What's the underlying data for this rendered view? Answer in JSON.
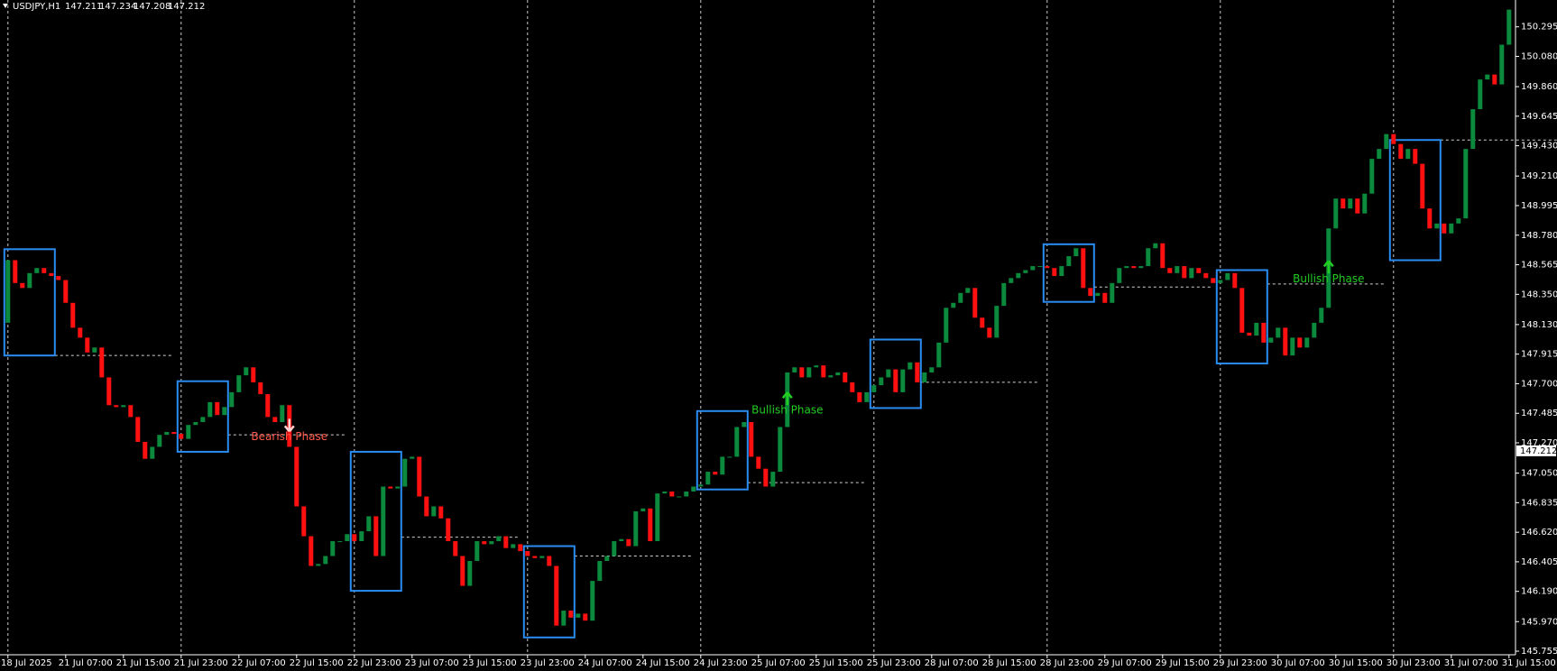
{
  "chart_data": {
    "type": "candlestick",
    "title": "USDJPY,H1",
    "last_bar": {
      "open": 147.211,
      "high": 147.234,
      "low": 147.208,
      "close": 147.212
    },
    "up_color": "#0b8a3e",
    "down_color": "#ff1010",
    "box_color": "#2a8cf0",
    "ylim": [
      145.729,
      150.49
    ],
    "yticks": [
      150.295,
      {
        "value": 150.08,
        "label": "150.080"
      },
      {
        "value": 149.86,
        "label": "149.860"
      },
      149.645,
      {
        "value": 149.43,
        "label": "149.430"
      },
      {
        "value": 149.21,
        "label": "149.210"
      },
      148.995,
      {
        "value": 148.78,
        "label": "148.780"
      },
      148.565,
      {
        "value": 148.35,
        "label": "148.350"
      },
      {
        "value": 148.13,
        "label": "148.130"
      },
      147.915,
      {
        "value": 147.7,
        "label": "147.700"
      },
      147.485,
      {
        "value": 147.27,
        "label": "147.270"
      },
      {
        "value": 147.05,
        "label": "147.050"
      },
      146.835,
      {
        "value": 146.62,
        "label": "146.620"
      },
      146.405,
      {
        "value": 146.19,
        "label": "146.190"
      },
      {
        "value": 145.97,
        "label": "145.970"
      },
      145.755
    ],
    "categories": [
      "18 Jul 2025",
      null,
      null,
      null,
      null,
      null,
      null,
      null,
      "21 Jul 07:00",
      null,
      null,
      null,
      null,
      null,
      null,
      null,
      "21 Jul 15:00",
      null,
      null,
      null,
      null,
      null,
      null,
      null,
      "21 Jul 23:00",
      null,
      null,
      null,
      null,
      null,
      null,
      null,
      "22 Jul 07:00",
      null,
      null,
      null,
      null,
      null,
      null,
      null,
      "22 Jul 15:00",
      null,
      null,
      null,
      null,
      null,
      null,
      null,
      "22 Jul 23:00",
      null,
      null,
      null,
      null,
      null,
      null,
      null,
      "23 Jul 07:00",
      null,
      null,
      null,
      null,
      null,
      null,
      null,
      "23 Jul 15:00",
      null,
      null,
      null,
      null,
      null,
      null,
      null,
      "23 Jul 23:00",
      null,
      null,
      null,
      null,
      null,
      null,
      null,
      "24 Jul 07:00",
      null,
      null,
      null,
      null,
      null,
      null,
      null,
      "24 Jul 15:00",
      null,
      null,
      null,
      null,
      null,
      null,
      null,
      "24 Jul 23:00",
      null,
      null,
      null,
      null,
      null,
      null,
      null,
      "25 Jul 07:00",
      null,
      null,
      null,
      null,
      null,
      null,
      null,
      "25 Jul 15:00",
      null,
      null,
      null,
      null,
      null,
      null,
      null,
      "25 Jul 23:00",
      null,
      null,
      null,
      null,
      null,
      null,
      null,
      "28 Jul 07:00",
      null,
      null,
      null,
      null,
      null,
      null,
      null,
      "28 Jul 15:00",
      null,
      null,
      null,
      null,
      null,
      null,
      null,
      "28 Jul 23:00",
      null,
      null,
      null,
      null,
      null,
      null,
      null,
      "29 Jul 07:00",
      null,
      null,
      null,
      null,
      null,
      null,
      null,
      "29 Jul 15:00",
      null,
      null,
      null,
      null,
      null,
      null,
      null,
      "29 Jul 23:00",
      null,
      null,
      null,
      null,
      null,
      null,
      null,
      "30 Jul 07:00",
      null,
      null,
      null,
      null,
      null,
      null,
      null,
      "30 Jul 15:00",
      null,
      null,
      null,
      null,
      null,
      null,
      null,
      "30 Jul 23:00",
      null,
      null,
      null,
      null,
      null,
      null,
      null,
      "31 Jul 07:00",
      null,
      null,
      null,
      null,
      null,
      null,
      null,
      "31 Jul 15:00"
    ],
    "open": [
      148.143,
      148.598,
      148.432,
      148.396,
      148.504,
      148.541,
      148.504,
      148.483,
      148.454,
      148.288,
      148.107,
      148.035,
      147.927,
      147.963,
      147.746,
      147.544,
      147.53,
      147.544,
      147.458,
      147.277,
      147.154,
      147.241,
      147.328,
      147.349,
      147.335,
      147.299,
      147.4,
      147.421,
      147.458,
      147.566,
      147.472,
      147.53,
      147.638,
      147.761,
      147.819,
      147.71,
      147.624,
      147.458,
      147.421,
      147.544,
      147.241,
      146.808,
      146.591,
      146.375,
      146.389,
      146.447,
      146.555,
      146.555,
      146.606,
      146.555,
      146.627,
      146.736,
      146.447,
      146.952,
      146.938,
      146.952,
      147.154,
      147.169,
      146.88,
      146.736,
      146.808,
      146.721,
      146.555,
      146.447,
      146.23,
      146.411,
      146.555,
      146.533,
      146.555,
      146.591,
      146.505,
      146.533,
      146.483,
      146.447,
      146.432,
      146.447,
      146.375,
      145.941,
      146.05,
      145.999,
      146.028,
      145.977,
      146.266,
      146.411,
      146.447,
      146.555,
      146.57,
      146.519,
      146.772,
      146.793,
      146.555,
      146.902,
      146.916,
      146.88,
      146.88,
      146.916,
      146.952,
      146.967,
      147.06,
      147.039,
      147.169,
      147.169,
      147.385,
      147.421,
      147.169,
      147.082,
      146.952,
      147.06,
      147.385,
      147.782,
      147.819,
      147.746,
      147.819,
      147.833,
      147.746,
      147.761,
      147.782,
      147.71,
      147.638,
      147.566,
      147.638,
      147.689,
      147.746,
      147.804,
      147.638,
      147.804,
      147.855,
      147.71,
      147.782,
      147.819,
      147.999,
      148.252,
      148.288,
      148.36,
      148.396,
      148.18,
      148.107,
      148.035,
      148.266,
      148.432,
      148.468,
      148.504,
      148.526,
      148.555,
      148.555,
      148.541,
      148.483,
      148.555,
      148.627,
      148.685,
      148.396,
      148.338,
      148.36,
      148.288,
      148.432,
      148.541,
      148.555,
      148.541,
      148.555,
      148.685,
      148.721,
      148.541,
      148.504,
      148.555,
      148.468,
      148.541,
      148.504,
      148.468,
      148.432,
      148.454,
      148.504,
      148.396,
      148.071,
      148.05,
      148.143,
      147.999,
      148.035,
      148.107,
      147.905,
      148.035,
      147.963,
      148.035,
      148.143,
      148.252,
      148.829,
      149.046,
      148.974,
      149.046,
      148.938,
      149.082,
      149.335,
      149.407,
      149.515,
      149.443,
      149.335,
      149.407,
      149.299,
      148.974,
      148.829,
      148.865,
      148.793,
      148.865,
      148.902,
      149.407,
      149.696,
      149.912,
      149.948,
      149.876,
      150.165
    ],
    "close": [
      148.598,
      148.432,
      148.396,
      148.504,
      148.541,
      148.504,
      148.483,
      148.454,
      148.288,
      148.107,
      148.035,
      147.927,
      147.963,
      147.746,
      147.544,
      147.53,
      147.544,
      147.458,
      147.277,
      147.154,
      147.241,
      147.328,
      147.349,
      147.335,
      147.299,
      147.4,
      147.421,
      147.458,
      147.566,
      147.472,
      147.53,
      147.638,
      147.761,
      147.819,
      147.71,
      147.624,
      147.458,
      147.421,
      147.544,
      147.241,
      146.808,
      146.591,
      146.375,
      146.389,
      146.447,
      146.555,
      146.555,
      146.606,
      146.555,
      146.627,
      146.736,
      146.447,
      146.952,
      146.938,
      146.952,
      147.154,
      147.169,
      146.88,
      146.736,
      146.808,
      146.721,
      146.555,
      146.447,
      146.23,
      146.411,
      146.555,
      146.533,
      146.555,
      146.591,
      146.505,
      146.533,
      146.483,
      146.447,
      146.432,
      146.447,
      146.375,
      145.941,
      146.05,
      145.999,
      146.028,
      145.977,
      146.266,
      146.411,
      146.447,
      146.555,
      146.57,
      146.519,
      146.772,
      146.793,
      146.555,
      146.902,
      146.916,
      146.88,
      146.88,
      146.916,
      146.952,
      146.967,
      147.06,
      147.039,
      147.169,
      147.169,
      147.385,
      147.421,
      147.169,
      147.082,
      146.952,
      147.06,
      147.385,
      147.782,
      147.819,
      147.746,
      147.819,
      147.833,
      147.746,
      147.761,
      147.782,
      147.71,
      147.638,
      147.566,
      147.638,
      147.689,
      147.746,
      147.804,
      147.638,
      147.804,
      147.855,
      147.71,
      147.782,
      147.819,
      147.999,
      148.252,
      148.288,
      148.36,
      148.396,
      148.18,
      148.107,
      148.035,
      148.266,
      148.432,
      148.468,
      148.504,
      148.526,
      148.555,
      148.555,
      148.541,
      148.483,
      148.555,
      148.627,
      148.685,
      148.396,
      148.338,
      148.36,
      148.288,
      148.432,
      148.541,
      148.555,
      148.541,
      148.555,
      148.685,
      148.721,
      148.541,
      148.504,
      148.555,
      148.468,
      148.541,
      148.504,
      148.468,
      148.432,
      148.454,
      148.504,
      148.396,
      148.071,
      148.05,
      148.143,
      147.999,
      148.035,
      148.107,
      147.905,
      148.035,
      147.963,
      148.035,
      148.143,
      148.252,
      148.829,
      149.046,
      148.974,
      149.046,
      148.938,
      149.082,
      149.335,
      149.407,
      149.515,
      149.443,
      149.335,
      149.407,
      149.299,
      148.974,
      148.829,
      148.865,
      148.793,
      148.865,
      148.902,
      149.407,
      149.696,
      149.912,
      149.948,
      149.876,
      150.165,
      150.42
    ],
    "boxes": [
      {
        "from": 0,
        "to": 6,
        "high": 148.678,
        "low": 147.905,
        "level": 147.905
      },
      {
        "from": 24,
        "to": 30,
        "high": 147.718,
        "low": 147.205,
        "level": 147.328
      },
      {
        "from": 48,
        "to": 54,
        "high": 147.205,
        "low": 146.194,
        "level": 146.584
      },
      {
        "from": 72,
        "to": 78,
        "high": 146.519,
        "low": 145.855,
        "level": 146.447
      },
      {
        "from": 96,
        "to": 102,
        "high": 147.501,
        "low": 146.931,
        "level": 146.981
      },
      {
        "from": 120,
        "to": 126,
        "high": 148.021,
        "low": 147.523,
        "level": 147.71
      },
      {
        "from": 144,
        "to": 150,
        "high": 148.714,
        "low": 148.295,
        "level": 148.403
      },
      {
        "from": 168,
        "to": 174,
        "high": 148.526,
        "low": 147.847,
        "level": 148.425
      },
      {
        "from": 192,
        "to": 198,
        "high": 149.472,
        "low": 148.598,
        "level": 149.472
      }
    ],
    "annotations": [
      {
        "text": "Bearish Phase",
        "index": 39,
        "color": "#ff5a4a",
        "direction": "down"
      },
      {
        "text": "Bullish Phase",
        "index": 108,
        "color": "#22cc22",
        "direction": "up"
      },
      {
        "text": "Bullish Phase",
        "index": 183,
        "color": "#22cc22",
        "direction": "up"
      }
    ]
  }
}
